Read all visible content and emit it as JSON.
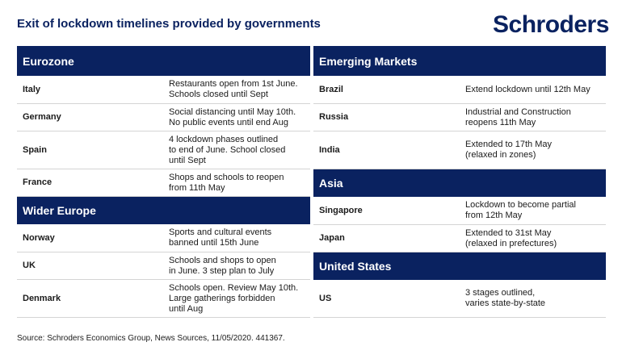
{
  "title": "Exit of lockdown timelines provided by governments",
  "logo": "Schroders",
  "sections": {
    "eurozone": {
      "header": "Eurozone",
      "rows": [
        {
          "country": "Italy",
          "desc": "Restaurants open from 1st June.\nSchools closed until Sept"
        },
        {
          "country": "Germany",
          "desc": "Social distancing until May 10th.\nNo public events until end Aug"
        },
        {
          "country": "Spain",
          "desc": "4 lockdown phases outlined\nto end of June. School closed\nuntil Sept"
        },
        {
          "country": "France",
          "desc": "Shops and schools to reopen\nfrom 11th May"
        }
      ]
    },
    "wider_europe": {
      "header": "Wider Europe",
      "rows": [
        {
          "country": "Norway",
          "desc": "Sports and cultural events\nbanned until 15th June"
        },
        {
          "country": "UK",
          "desc": "Schools and shops to open\nin June. 3 step plan to July"
        },
        {
          "country": "Denmark",
          "desc": "Schools open. Review May 10th.\nLarge gatherings forbidden\nuntil Aug"
        }
      ]
    },
    "emerging_markets": {
      "header": "Emerging Markets",
      "rows": [
        {
          "country": "Brazil",
          "desc": "Extend lockdown until 12th May"
        },
        {
          "country": "Russia",
          "desc": "Industrial and Construction\nreopens 11th May"
        },
        {
          "country": "India",
          "desc": "Extended to 17th May\n(relaxed in zones)"
        }
      ]
    },
    "asia": {
      "header": "Asia",
      "rows": [
        {
          "country": "Singapore",
          "desc": "Lockdown to become partial\nfrom 12th May"
        },
        {
          "country": "Japan",
          "desc": "Extended to 31st May\n(relaxed in prefectures)"
        }
      ]
    },
    "united_states": {
      "header": "United States",
      "rows": [
        {
          "country": "US",
          "desc": "3 stages outlined,\nvaries state-by-state"
        }
      ]
    }
  },
  "source": "Source: Schroders Economics Group, News Sources, 11/05/2020. 441367."
}
